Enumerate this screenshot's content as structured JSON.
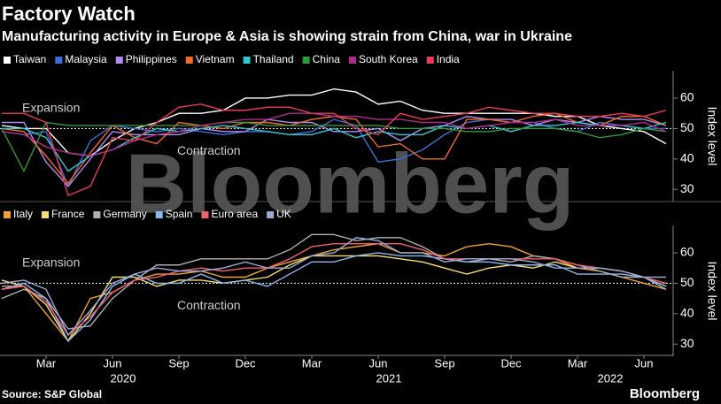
{
  "title": "Factory Watch",
  "subtitle": "Manufacturing activity in Europe & Asia is showing strain from China, war in Ukraine",
  "watermark": "Bloomberg",
  "source": "Source: S&P Global",
  "brand": "Bloomberg",
  "chart_data": [
    {
      "type": "line",
      "x": [
        "2020-01",
        "2020-02",
        "2020-03",
        "2020-04",
        "2020-05",
        "2020-06",
        "2020-07",
        "2020-08",
        "2020-09",
        "2020-10",
        "2020-11",
        "2020-12",
        "2021-01",
        "2021-02",
        "2021-03",
        "2021-04",
        "2021-05",
        "2021-06",
        "2021-07",
        "2021-08",
        "2021-09",
        "2021-10",
        "2021-11",
        "2021-12",
        "2022-01",
        "2022-02",
        "2022-03",
        "2022-04",
        "2022-05",
        "2022-06",
        "2022-07"
      ],
      "series": [
        {
          "name": "Taiwan",
          "color": "#ffffff",
          "values": [
            51,
            50,
            50,
            42,
            41,
            46,
            50,
            52,
            55,
            55,
            56,
            60,
            60,
            61,
            61,
            63,
            62,
            58,
            59,
            56,
            55,
            55,
            55,
            55,
            55,
            54,
            54,
            51,
            50,
            49,
            45
          ]
        },
        {
          "name": "Malaysia",
          "color": "#3a6fd8",
          "values": [
            49,
            48,
            49,
            31,
            46,
            51,
            50,
            49,
            50,
            49,
            48,
            49,
            49,
            48,
            49,
            53,
            51,
            39,
            40,
            43,
            48,
            52,
            53,
            52,
            52,
            50,
            49,
            52,
            51,
            50,
            50
          ]
        },
        {
          "name": "Philippines",
          "color": "#b28cf0",
          "values": [
            52,
            52,
            39,
            31,
            40,
            49,
            48,
            48,
            48,
            50,
            49,
            49,
            53,
            52,
            52,
            49,
            49,
            50,
            46,
            50,
            51,
            54,
            53,
            53,
            51,
            53,
            52,
            54,
            53,
            53,
            51
          ]
        },
        {
          "name": "Vietnam",
          "color": "#f06a2a",
          "values": [
            50,
            49,
            41,
            32,
            42,
            51,
            47,
            45,
            52,
            51,
            50,
            52,
            52,
            51,
            53,
            54,
            53,
            44,
            45,
            40,
            40,
            53,
            53,
            52,
            54,
            55,
            52,
            51,
            54,
            54,
            51
          ]
        },
        {
          "name": "Thailand",
          "color": "#2ec8d0",
          "values": [
            50,
            50,
            47,
            36,
            41,
            43,
            47,
            50,
            49,
            50,
            51,
            50,
            49,
            48,
            48,
            50,
            47,
            49,
            48,
            48,
            51,
            50,
            51,
            49,
            51,
            51,
            52,
            51,
            51,
            50,
            52
          ]
        },
        {
          "name": "China",
          "color": "#2e9a3a",
          "values": [
            50,
            36,
            52,
            51,
            51,
            51,
            51,
            51,
            51,
            51,
            52,
            52,
            51,
            51,
            51,
            51,
            51,
            51,
            50,
            50,
            50,
            49,
            49,
            50,
            50,
            50,
            49,
            47,
            48,
            50,
            49
          ]
        },
        {
          "name": "South Korea",
          "color": "#b02a8a",
          "values": [
            49,
            48,
            44,
            42,
            41,
            43,
            46,
            48,
            49,
            51,
            52,
            53,
            53,
            55,
            55,
            54,
            54,
            53,
            53,
            52,
            52,
            50,
            51,
            52,
            52,
            53,
            51,
            51,
            51,
            52,
            49
          ]
        },
        {
          "name": "India",
          "color": "#e83a5a",
          "values": [
            55,
            55,
            52,
            28,
            31,
            47,
            46,
            52,
            57,
            58,
            56,
            56,
            57,
            57,
            55,
            55,
            50,
            48,
            55,
            53,
            54,
            55,
            57,
            56,
            55,
            55,
            54,
            54,
            55,
            54,
            56
          ]
        }
      ],
      "ylim": [
        26,
        69
      ],
      "yticks": [
        30,
        40,
        50,
        60
      ],
      "y_label": "Index level",
      "reference_line": 50,
      "annotations": [
        "Expansion",
        "Contraction"
      ]
    },
    {
      "type": "line",
      "x": [
        "2020-01",
        "2020-02",
        "2020-03",
        "2020-04",
        "2020-05",
        "2020-06",
        "2020-07",
        "2020-08",
        "2020-09",
        "2020-10",
        "2020-11",
        "2020-12",
        "2021-01",
        "2021-02",
        "2021-03",
        "2021-04",
        "2021-05",
        "2021-06",
        "2021-07",
        "2021-08",
        "2021-09",
        "2021-10",
        "2021-11",
        "2021-12",
        "2022-01",
        "2022-02",
        "2022-03",
        "2022-04",
        "2022-05",
        "2022-06",
        "2022-07"
      ],
      "series": [
        {
          "name": "Italy",
          "color": "#f0a030",
          "values": [
            49,
            49,
            40,
            31,
            45,
            47,
            51,
            53,
            53,
            54,
            52,
            52,
            55,
            57,
            59,
            61,
            62,
            63,
            60,
            60,
            59,
            62,
            63,
            62,
            59,
            58,
            55,
            54,
            52,
            50,
            48
          ]
        },
        {
          "name": "France",
          "color": "#f5e070",
          "values": [
            51,
            49,
            43,
            31,
            40,
            52,
            52,
            49,
            51,
            51,
            50,
            51,
            52,
            56,
            59,
            59,
            59,
            59,
            58,
            57,
            55,
            53,
            55,
            56,
            55,
            57,
            55,
            55,
            54,
            52,
            49
          ]
        },
        {
          "name": "Germany",
          "color": "#b0b0b0",
          "values": [
            45,
            48,
            45,
            35,
            36,
            45,
            51,
            56,
            56,
            58,
            58,
            58,
            58,
            61,
            66,
            66,
            64,
            65,
            65,
            62,
            58,
            57,
            58,
            57,
            59,
            58,
            56,
            54,
            52,
            52,
            49
          ]
        },
        {
          "name": "Spain",
          "color": "#8ab8f0",
          "values": [
            48,
            50,
            45,
            31,
            38,
            49,
            53,
            50,
            50,
            53,
            50,
            51,
            49,
            53,
            57,
            57,
            59,
            60,
            59,
            59,
            58,
            57,
            57,
            56,
            56,
            56,
            53,
            53,
            53,
            52,
            48
          ]
        },
        {
          "name": "Euro area",
          "color": "#f06070",
          "values": [
            48,
            49,
            44,
            33,
            39,
            47,
            51,
            52,
            54,
            55,
            54,
            55,
            55,
            58,
            62,
            63,
            63,
            63,
            63,
            61,
            58,
            58,
            58,
            58,
            58,
            58,
            56,
            55,
            54,
            52,
            50
          ]
        },
        {
          "name": "UK",
          "color": "#9aa8d8",
          "values": [
            50,
            51,
            48,
            33,
            41,
            50,
            53,
            55,
            54,
            54,
            55,
            57,
            55,
            55,
            59,
            60,
            65,
            64,
            60,
            60,
            57,
            58,
            58,
            58,
            57,
            55,
            55,
            55,
            54,
            52,
            52
          ]
        }
      ],
      "ylim": [
        26,
        69
      ],
      "yticks": [
        30,
        40,
        50,
        60
      ],
      "y_label": "Index level",
      "reference_line": 50,
      "annotations": [
        "Expansion",
        "Contraction"
      ],
      "xticks": [
        {
          "value": "2020-03",
          "label": "Mar"
        },
        {
          "value": "2020-06",
          "label": "Jun"
        },
        {
          "value": "2020-09",
          "label": "Sep"
        },
        {
          "value": "2020-12",
          "label": "Dec"
        },
        {
          "value": "2021-03",
          "label": "Mar"
        },
        {
          "value": "2021-06",
          "label": "Jun"
        },
        {
          "value": "2021-09",
          "label": "Sep"
        },
        {
          "value": "2021-12",
          "label": "Dec"
        },
        {
          "value": "2022-03",
          "label": "Mar"
        },
        {
          "value": "2022-06",
          "label": "Jun"
        }
      ],
      "year_labels": [
        {
          "value": "2020-06",
          "label": "2020"
        },
        {
          "value": "2021-06",
          "label": "2021"
        },
        {
          "value": "2022-04",
          "label": "2022"
        }
      ]
    }
  ]
}
